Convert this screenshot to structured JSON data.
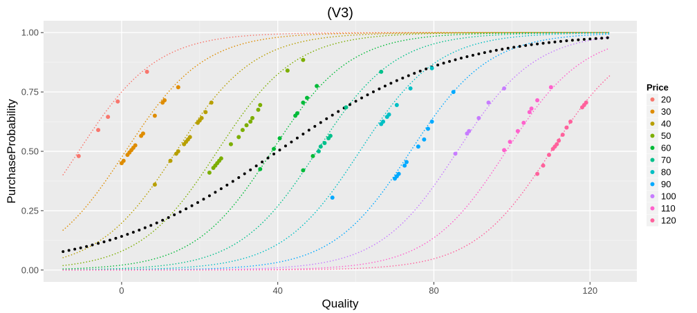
{
  "chart_data": {
    "type": "scatter",
    "title": "(V3)",
    "xlabel": "Quality",
    "ylabel": "PurchaseProbability",
    "xlim": [
      -20,
      132
    ],
    "ylim": [
      -0.05,
      1.05
    ],
    "x_ticks": [
      0,
      40,
      80,
      120
    ],
    "x_tick_labels": [
      "0",
      "40",
      "80",
      "120"
    ],
    "y_ticks": [
      0,
      0.25,
      0.5,
      0.75,
      1.0
    ],
    "y_tick_labels": [
      "0.00",
      "0.25",
      "0.50",
      "0.75",
      "1.00"
    ],
    "grid": true,
    "legend": {
      "title": "Price",
      "position": "right",
      "entries": [
        "20",
        "30",
        "40",
        "50",
        "60",
        "70",
        "80",
        "90",
        "100",
        "110",
        "120"
      ]
    },
    "curve_x_range": [
      -15,
      125
    ],
    "series": [
      {
        "name": "20",
        "color": "#F8766D",
        "curve": {
          "midpoint": -11,
          "slope": 0.1
        },
        "points": [
          [
            -11,
            0.48
          ],
          [
            -6,
            0.59
          ],
          [
            -3.5,
            0.645
          ],
          [
            -1,
            0.71
          ],
          [
            6.5,
            0.835
          ]
        ]
      },
      {
        "name": "30",
        "color": "#DE8C00",
        "curve": {
          "midpoint": 1,
          "slope": 0.1
        },
        "points": [
          [
            0,
            0.45
          ],
          [
            0.5,
            0.46
          ],
          [
            1.5,
            0.485
          ],
          [
            2,
            0.495
          ],
          [
            2.5,
            0.505
          ],
          [
            3,
            0.515
          ],
          [
            3.5,
            0.525
          ],
          [
            5,
            0.565
          ],
          [
            5.5,
            0.575
          ],
          [
            8.5,
            0.65
          ],
          [
            10.5,
            0.705
          ],
          [
            11,
            0.715
          ],
          [
            14.5,
            0.77
          ]
        ]
      },
      {
        "name": "40",
        "color": "#B79F00",
        "curve": {
          "midpoint": 14,
          "slope": 0.1
        },
        "points": [
          [
            8.5,
            0.36
          ],
          [
            12.5,
            0.46
          ],
          [
            14,
            0.49
          ],
          [
            14.5,
            0.5
          ],
          [
            16,
            0.53
          ],
          [
            16.5,
            0.54
          ],
          [
            17,
            0.55
          ],
          [
            17.5,
            0.56
          ],
          [
            19.5,
            0.62
          ],
          [
            20,
            0.63
          ],
          [
            20.5,
            0.64
          ],
          [
            21.5,
            0.665
          ],
          [
            23,
            0.705
          ]
        ]
      },
      {
        "name": "50",
        "color": "#7CAE00",
        "curve": {
          "midpoint": 24.5,
          "slope": 0.1
        },
        "points": [
          [
            22.5,
            0.41
          ],
          [
            23.5,
            0.43
          ],
          [
            24,
            0.44
          ],
          [
            24.5,
            0.45
          ],
          [
            25,
            0.46
          ],
          [
            25.5,
            0.47
          ],
          [
            28,
            0.53
          ],
          [
            30,
            0.56
          ],
          [
            31,
            0.59
          ],
          [
            32,
            0.61
          ],
          [
            33,
            0.625
          ],
          [
            33.5,
            0.64
          ],
          [
            35,
            0.675
          ],
          [
            35.5,
            0.695
          ],
          [
            42.5,
            0.84
          ],
          [
            46.5,
            0.885
          ]
        ]
      },
      {
        "name": "60",
        "color": "#00BA38",
        "curve": {
          "midpoint": 38.5,
          "slope": 0.1
        },
        "points": [
          [
            35.5,
            0.425
          ],
          [
            39,
            0.51
          ],
          [
            40.5,
            0.555
          ],
          [
            44.5,
            0.65
          ],
          [
            45,
            0.66
          ],
          [
            46.5,
            0.705
          ],
          [
            47.5,
            0.725
          ],
          [
            50,
            0.775
          ],
          [
            46.5,
            0.42
          ],
          [
            49,
            0.48
          ]
        ]
      },
      {
        "name": "70",
        "color": "#00C08B",
        "curve": {
          "midpoint": 50,
          "slope": 0.1
        },
        "points": [
          [
            50.5,
            0.5
          ],
          [
            51,
            0.52
          ],
          [
            52,
            0.535
          ],
          [
            53,
            0.555
          ],
          [
            53.5,
            0.565
          ],
          [
            57.5,
            0.685
          ],
          [
            66.5,
            0.835
          ]
        ]
      },
      {
        "name": "80",
        "color": "#00BFC4",
        "curve": {
          "midpoint": 61,
          "slope": 0.1
        },
        "points": [
          [
            66.5,
            0.615
          ],
          [
            67,
            0.625
          ],
          [
            68,
            0.645
          ],
          [
            68.5,
            0.655
          ],
          [
            70.5,
            0.695
          ],
          [
            74,
            0.765
          ],
          [
            79.5,
            0.85
          ]
        ]
      },
      {
        "name": "90",
        "color": "#00A9FF",
        "curve": {
          "midpoint": 74,
          "slope": 0.1
        },
        "points": [
          [
            54,
            0.305
          ],
          [
            70,
            0.385
          ],
          [
            70.5,
            0.395
          ],
          [
            71,
            0.405
          ],
          [
            72.5,
            0.44
          ],
          [
            73,
            0.455
          ],
          [
            76,
            0.52
          ],
          [
            77.5,
            0.55
          ],
          [
            78.5,
            0.595
          ],
          [
            79.5,
            0.625
          ],
          [
            85,
            0.75
          ]
        ]
      },
      {
        "name": "100",
        "color": "#C77CFF",
        "curve": {
          "midpoint": 86,
          "slope": 0.1
        },
        "points": [
          [
            85.5,
            0.49
          ],
          [
            88.5,
            0.575
          ],
          [
            89,
            0.585
          ],
          [
            91.5,
            0.64
          ],
          [
            94,
            0.705
          ],
          [
            98,
            0.765
          ]
        ]
      },
      {
        "name": "110",
        "color": "#FF61CC",
        "curve": {
          "midpoint": 98.5,
          "slope": 0.1
        },
        "points": [
          [
            98,
            0.505
          ],
          [
            99.5,
            0.54
          ],
          [
            101.5,
            0.585
          ],
          [
            103,
            0.62
          ],
          [
            104.5,
            0.665
          ],
          [
            105,
            0.68
          ],
          [
            106.5,
            0.715
          ],
          [
            110,
            0.77
          ]
        ]
      },
      {
        "name": "120",
        "color": "#FF619C",
        "curve": {
          "midpoint": 110,
          "slope": 0.1
        },
        "points": [
          [
            106.5,
            0.405
          ],
          [
            108,
            0.44
          ],
          [
            109.5,
            0.485
          ],
          [
            110.5,
            0.51
          ],
          [
            111,
            0.52
          ],
          [
            111.5,
            0.53
          ],
          [
            112,
            0.545
          ],
          [
            113,
            0.57
          ],
          [
            114,
            0.6
          ],
          [
            115,
            0.625
          ],
          [
            118,
            0.685
          ],
          [
            118.5,
            0.695
          ],
          [
            119,
            0.705
          ]
        ]
      }
    ],
    "overall_curve": {
      "color": "#000000",
      "midpoint": 40,
      "slope": 0.045,
      "x_range": [
        -15,
        125
      ],
      "step": 1.5
    }
  }
}
